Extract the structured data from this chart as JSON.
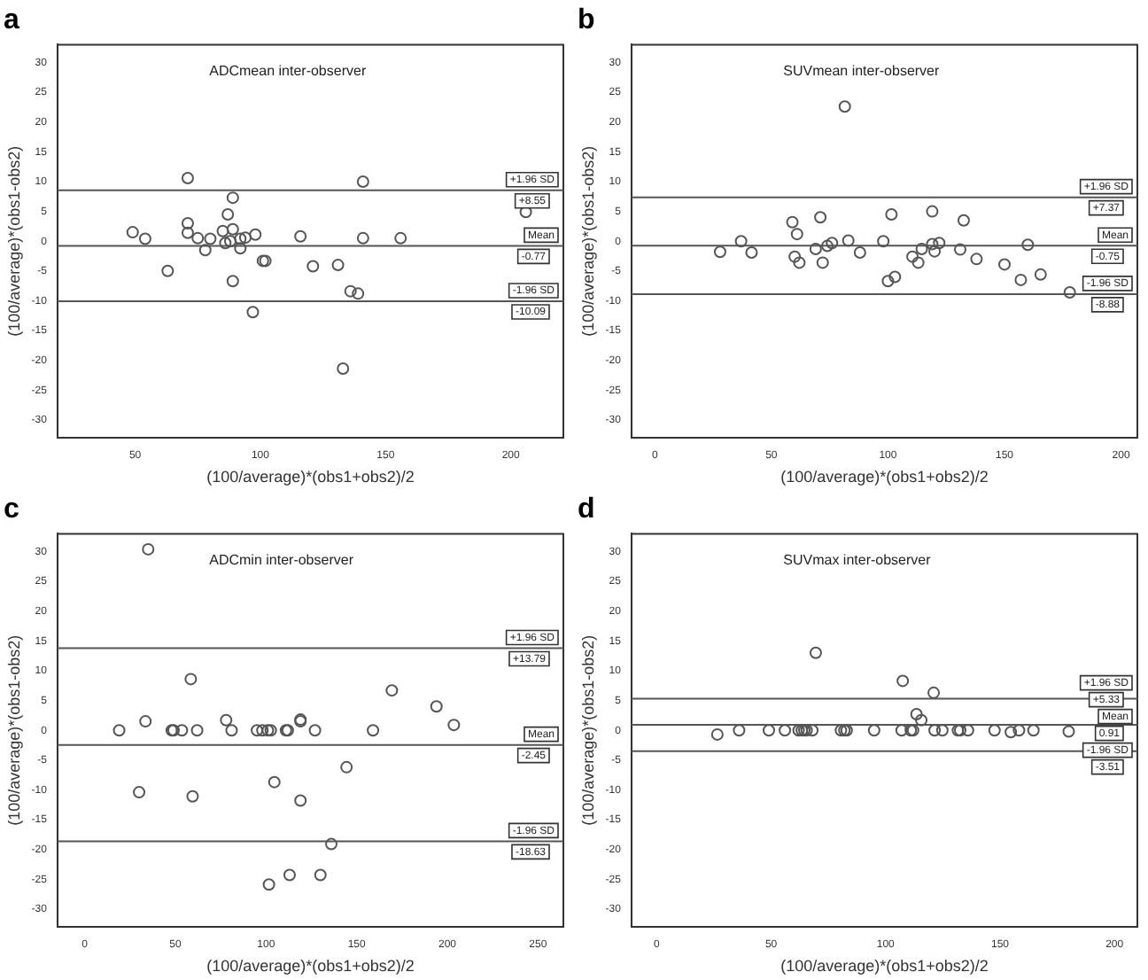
{
  "chart_data": [
    {
      "type": "scatter",
      "title": "a",
      "annotations": [
        "ADCmean inter-observer",
        {
          "text": "+8.55",
          "y": 8.55
        },
        {
          "text": "-0.77",
          "y": -0.77
        },
        {
          "text": "-10.09",
          "y": -10.09
        }
      ],
      "xlabel": "(100/average)*(obs1+obs2)/2",
      "ylabel": "(100/average)*(obs1-obs2)",
      "xlim": [
        19,
        221
      ],
      "xticks": [
        50,
        100,
        150,
        200
      ],
      "ylim": [
        -33,
        33
      ],
      "yticks": [
        -30,
        -25,
        -20,
        -15,
        -10,
        -5,
        0,
        5,
        10,
        15,
        20,
        25,
        30
      ],
      "grid": false,
      "legend": false,
      "marker": "circle",
      "ref_lines": [
        {
          "axis": "y",
          "value": 8.55,
          "label": "+1.96 SD"
        },
        {
          "axis": "y",
          "value": -0.77,
          "label": "Mean"
        },
        {
          "axis": "y",
          "value": -10.09,
          "label": "-1.96 SD"
        }
      ],
      "series": [
        {
          "color": "#555555",
          "x": [
            49,
            54,
            63,
            71,
            71,
            71,
            75,
            78,
            80,
            85,
            86,
            88,
            87,
            89,
            89,
            89,
            92,
            92,
            94,
            98,
            97,
            101,
            102,
            116,
            121,
            131,
            133,
            136,
            139,
            141,
            141,
            156,
            206
          ],
          "values": [
            1.5,
            0.4,
            -5,
            10.6,
            3,
            1.4,
            0.5,
            -1.5,
            0.4,
            1.7,
            -0.3,
            0,
            4.5,
            7.3,
            2,
            -6.7,
            -1.2,
            0.4,
            0.6,
            1.1,
            -11.9,
            -3.3,
            -3.3,
            0.8,
            -4.2,
            -4,
            -21.4,
            -8.4,
            -8.8,
            10,
            0.5,
            0.5,
            4.9
          ]
        }
      ]
    },
    {
      "type": "scatter",
      "title": "b",
      "annotations": [
        "SUVmean inter-observer",
        {
          "text": "+7.37",
          "y": 7.37
        },
        {
          "text": "-0.75",
          "y": -0.75
        },
        {
          "text": "-8.88",
          "y": -8.88
        }
      ],
      "xlabel": "(100/average)*(obs1+obs2)/2",
      "ylabel": "(100/average)*(obs1-obs2)",
      "xlim": [
        -10,
        207
      ],
      "xticks": [
        0,
        50,
        100,
        150,
        200
      ],
      "ylim": [
        -33,
        33
      ],
      "yticks": [
        -30,
        -25,
        -20,
        -15,
        -10,
        -5,
        0,
        5,
        10,
        15,
        20,
        25,
        30
      ],
      "grid": false,
      "legend": false,
      "marker": "circle",
      "ref_lines": [
        {
          "axis": "y",
          "value": 7.37,
          "label": "+1.96 SD"
        },
        {
          "axis": "y",
          "value": -0.75,
          "label": "Mean"
        },
        {
          "axis": "y",
          "value": -8.88,
          "label": "-1.96 SD"
        }
      ],
      "series": [
        {
          "color": "#555555",
          "x": [
            28,
            37,
            41.5,
            59,
            61,
            60,
            62,
            69,
            71,
            72,
            74,
            76,
            81.5,
            83,
            88,
            98,
            100,
            101.5,
            103,
            110.5,
            113,
            114.5,
            119,
            119,
            120,
            122,
            131,
            132.5,
            138,
            150,
            157,
            160,
            165.5,
            178
          ],
          "values": [
            -1.8,
            0,
            -1.9,
            3.2,
            1.2,
            -2.6,
            -3.6,
            -1.3,
            4,
            -3.6,
            -0.8,
            -0.3,
            22.6,
            0.1,
            -1.9,
            0,
            -6.7,
            4.5,
            -6,
            -2.6,
            -3.6,
            -1.3,
            5,
            -0.5,
            -1.7,
            -0.3,
            -1.4,
            3.5,
            -3,
            -3.9,
            -6.5,
            -0.6,
            -5.6,
            -8.6
          ]
        }
      ]
    },
    {
      "type": "scatter",
      "title": "c",
      "annotations": [
        "ADCmin inter-observer",
        {
          "text": "+13.79",
          "y": 13.79
        },
        {
          "text": "-2.45",
          "y": -2.45
        },
        {
          "text": "-18.63",
          "y": -18.63
        }
      ],
      "xlabel": "(100/average)*(obs1+obs2)/2",
      "ylabel": "(100/average)*(obs1-obs2)",
      "xlim": [
        -15,
        264
      ],
      "xticks": [
        0,
        50,
        100,
        150,
        200,
        250
      ],
      "ylim": [
        -33,
        33
      ],
      "yticks": [
        -30,
        -25,
        -20,
        -15,
        -10,
        -5,
        0,
        5,
        10,
        15,
        20,
        25,
        30
      ],
      "grid": false,
      "legend": false,
      "marker": "circle",
      "ref_lines": [
        {
          "axis": "y",
          "value": 13.79,
          "label": "+1.96 SD"
        },
        {
          "axis": "y",
          "value": -2.45,
          "label": "Mean"
        },
        {
          "axis": "y",
          "value": -18.63,
          "label": "-1.96 SD"
        }
      ],
      "series": [
        {
          "color": "#555555",
          "x": [
            19,
            30,
            33.5,
            35,
            48,
            49,
            53.6,
            58.5,
            59.5,
            62,
            78,
            81,
            95,
            98,
            101,
            102.6,
            101.6,
            104.6,
            111,
            112,
            113,
            119,
            119,
            119,
            127,
            130,
            136,
            144.4,
            159,
            169.4,
            194,
            203.6
          ],
          "values": [
            0,
            -10.4,
            1.5,
            30.4,
            0,
            0,
            0,
            8.6,
            -11.1,
            0,
            1.7,
            0,
            0,
            0,
            0,
            0,
            -25.9,
            -8.7,
            0,
            0,
            -24.3,
            1.8,
            1.5,
            -11.8,
            0,
            -24.3,
            -19.1,
            -6.2,
            0,
            6.7,
            4,
            0.9
          ]
        }
      ]
    },
    {
      "type": "scatter",
      "title": "d",
      "annotations": [
        "SUVmax inter-observer",
        {
          "text": "+5.33",
          "y": 5.33
        },
        {
          "text": "0.91",
          "y": 0.91
        },
        {
          "text": "-3.51",
          "y": -3.51
        }
      ],
      "xlabel": "(100/average)*(obs1+obs2)/2",
      "ylabel": "(100/average)*(obs1-obs2)",
      "xlim": [
        -11,
        210
      ],
      "xticks": [
        0,
        50,
        100,
        150,
        200
      ],
      "ylim": [
        -33,
        33
      ],
      "yticks": [
        -30,
        -25,
        -20,
        -15,
        -10,
        -5,
        0,
        5,
        10,
        15,
        20,
        25,
        30
      ],
      "grid": false,
      "legend": false,
      "marker": "circle",
      "ref_lines": [
        {
          "axis": "y",
          "value": 5.33,
          "label": "+1.96 SD"
        },
        {
          "axis": "y",
          "value": 0.91,
          "label": "Mean"
        },
        {
          "axis": "y",
          "value": -3.51,
          "label": "-1.96 SD"
        }
      ],
      "series": [
        {
          "color": "#555555",
          "x": [
            26.5,
            36,
            49,
            56,
            62,
            63.4,
            64.5,
            65.5,
            68,
            69.5,
            80.5,
            82,
            83,
            95,
            107,
            107.5,
            111,
            112,
            113.5,
            115.6,
            121,
            121.4,
            124.8,
            131.6,
            132.6,
            136,
            147.6,
            154.7,
            158.3,
            164.6,
            180
          ],
          "values": [
            -0.7,
            0,
            0,
            0,
            0,
            0,
            0,
            0,
            0,
            13,
            0,
            0,
            0,
            0,
            0,
            8.3,
            0,
            0,
            2.7,
            1.7,
            6.3,
            0,
            0,
            0,
            0,
            0,
            0,
            -0.3,
            0,
            0,
            -0.2
          ]
        }
      ]
    }
  ]
}
